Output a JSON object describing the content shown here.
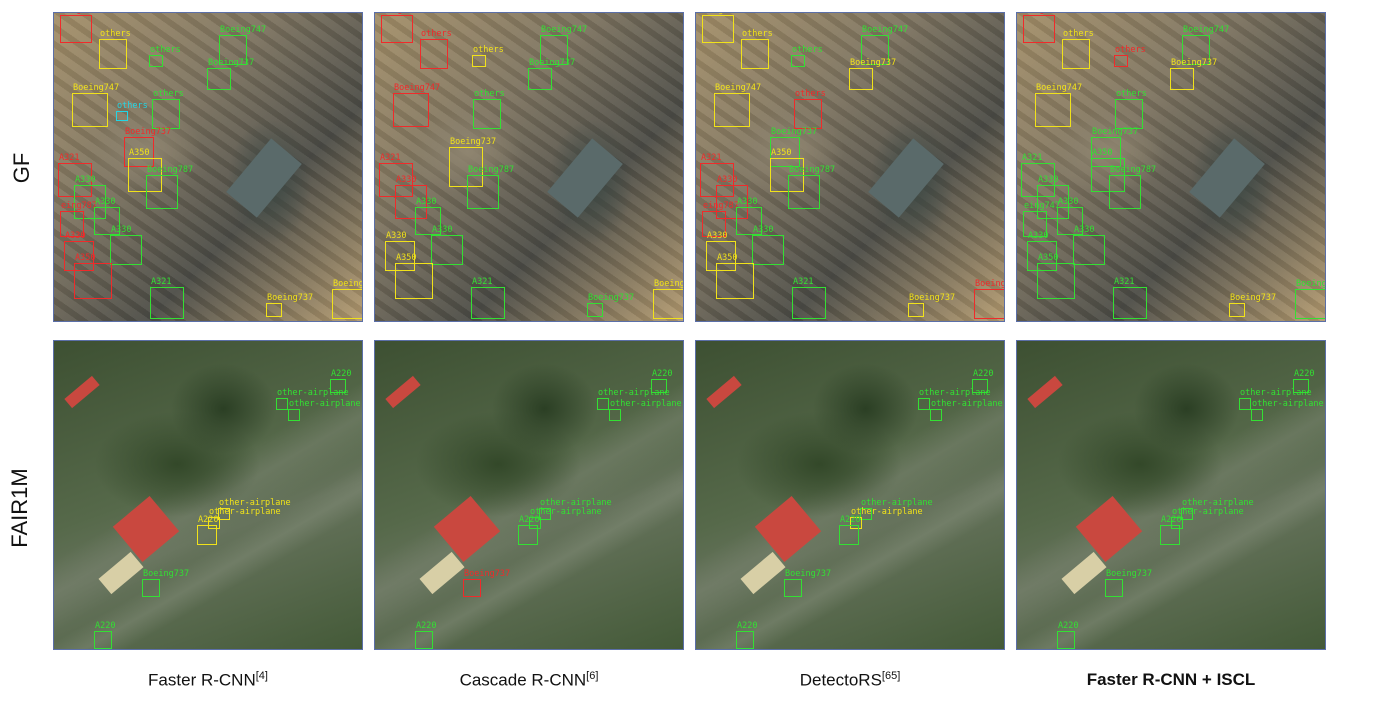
{
  "rows": [
    {
      "label": "GF"
    },
    {
      "label": "FAIR1M"
    }
  ],
  "columns": [
    {
      "name": "Faster R-CNN",
      "ref": "[4]"
    },
    {
      "name": "Cascade R-CNN",
      "ref": "[6]"
    },
    {
      "name": "DetectoRS",
      "ref": "[65]"
    },
    {
      "name": "Faster R-CNN + ISCL",
      "ref": ""
    }
  ],
  "colors": {
    "green": "#33e033",
    "yellow": "#f1e21a",
    "red": "#f02a2a",
    "cyan": "#22d6e6"
  },
  "labels": {
    "boeing747": "Boeing747",
    "boeing737": "Boeing737",
    "boeing787": "Boeing787",
    "boeing787_trunc": "eing787",
    "boeing747_trunc": "eing747",
    "boeing_trunc": "Boeing",
    "others": "others",
    "a330": "A330",
    "a350": "A350",
    "a321": "A321",
    "a220": "A220",
    "other_airplane": "other-airplane"
  }
}
